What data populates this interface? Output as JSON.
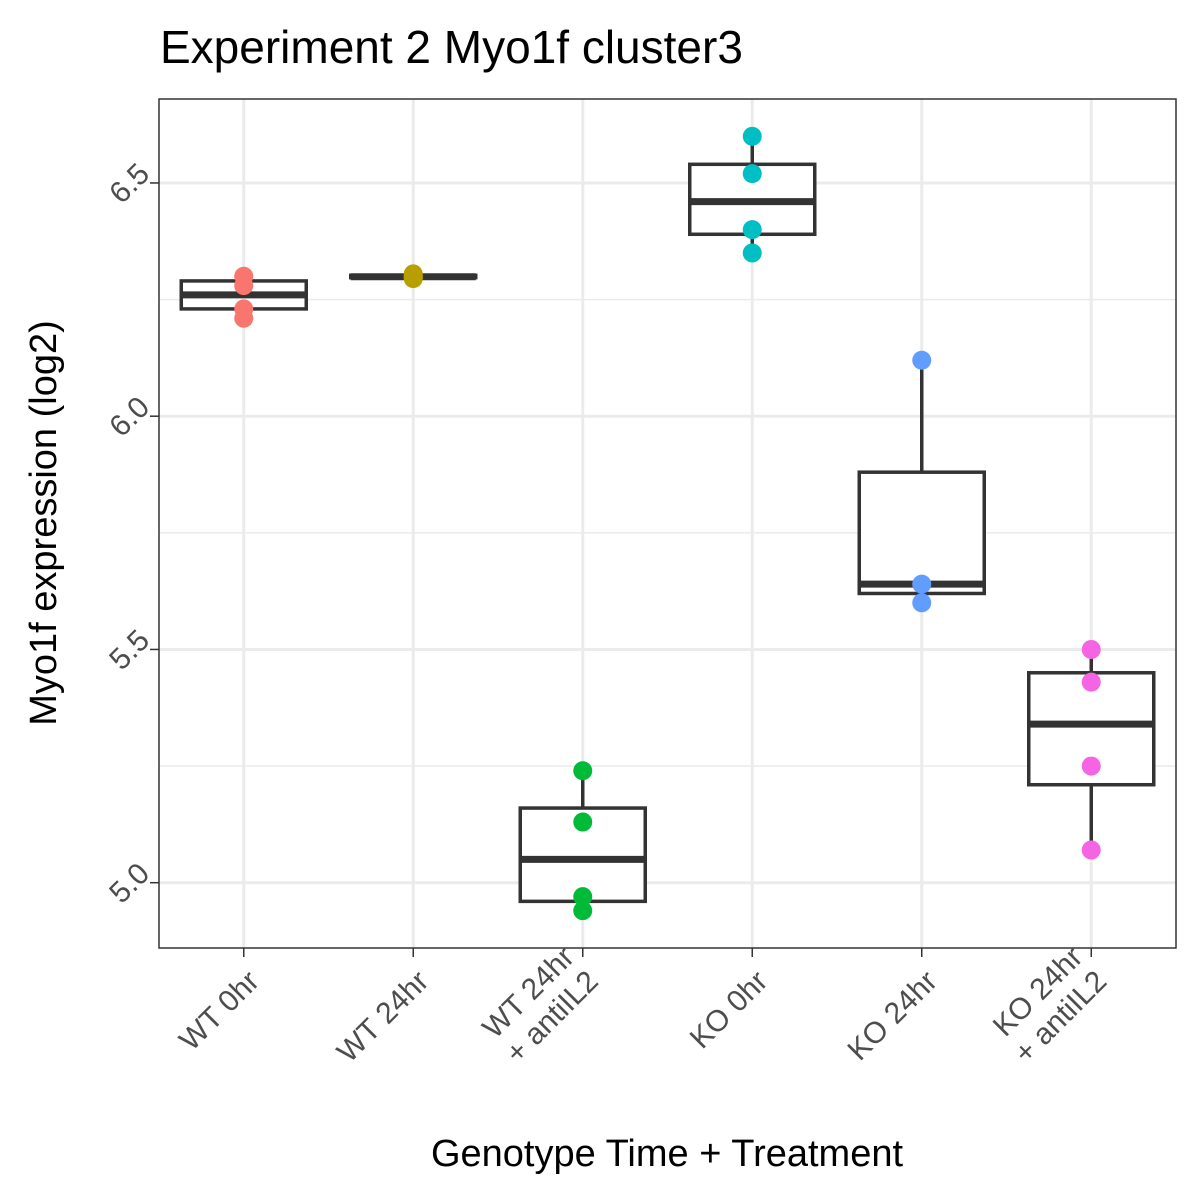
{
  "chart_data": {
    "type": "box",
    "title": "Experiment 2 Myo1f cluster3",
    "xlabel": "Genotype Time + Treatment",
    "ylabel": "Myo1f expression (log2)",
    "ylim": [
      4.86,
      6.68
    ],
    "yticks": [
      5.0,
      5.5,
      6.0,
      6.5
    ],
    "ytick_labels": [
      "5.0",
      "5.5",
      "6.0",
      "6.5"
    ],
    "grid": true,
    "legend": "none",
    "categories": [
      [
        "WT 0hr"
      ],
      [
        "WT 24hr"
      ],
      [
        "WT 24hr",
        "+ antiIL2"
      ],
      [
        "KO 0hr"
      ],
      [
        "KO 24hr"
      ],
      [
        "KO 24hr",
        "+ antiIL2"
      ]
    ],
    "groups": [
      {
        "color": "#F8766D",
        "points": [
          6.3,
          6.28,
          6.23,
          6.21
        ],
        "box": {
          "min": 6.21,
          "q1": 6.23,
          "median": 6.26,
          "q3": 6.29,
          "max": 6.3
        }
      },
      {
        "color": "#B79F00",
        "points": [
          6.305,
          6.3,
          6.298,
          6.295
        ],
        "box": {
          "min": 6.295,
          "q1": 6.297,
          "median": 6.299,
          "q3": 6.302,
          "max": 6.305
        }
      },
      {
        "color": "#00BA38",
        "points": [
          5.24,
          5.13,
          4.97,
          4.94
        ],
        "box": {
          "min": 4.94,
          "q1": 4.96,
          "median": 5.05,
          "q3": 5.16,
          "max": 5.24
        }
      },
      {
        "color": "#00BFC4",
        "points": [
          6.6,
          6.52,
          6.4,
          6.35
        ],
        "box": {
          "min": 6.35,
          "q1": 6.39,
          "median": 6.46,
          "q3": 6.54,
          "max": 6.6
        }
      },
      {
        "color": "#619CFF",
        "points": [
          6.12,
          5.64,
          5.6
        ],
        "box": {
          "min": 5.6,
          "q1": 5.62,
          "median": 5.64,
          "q3": 5.88,
          "max": 6.12
        }
      },
      {
        "color": "#F564E3",
        "points": [
          5.5,
          5.43,
          5.25,
          5.07
        ],
        "box": {
          "min": 5.07,
          "q1": 5.21,
          "median": 5.34,
          "q3": 5.45,
          "max": 5.5
        }
      }
    ]
  }
}
